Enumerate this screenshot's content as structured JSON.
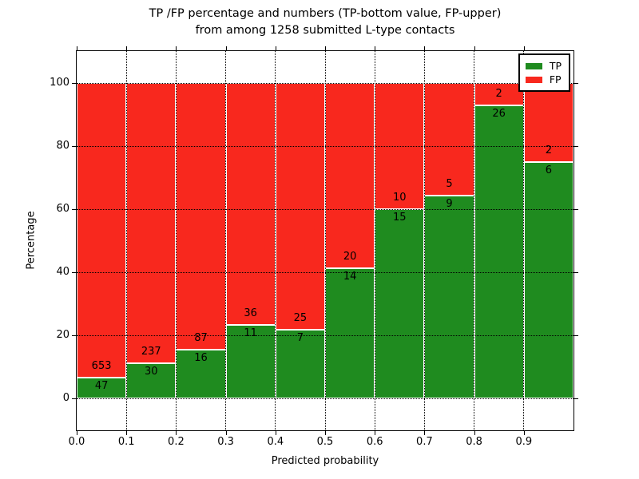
{
  "chart_data": {
    "type": "bar",
    "stacked": true,
    "title_line1": "TP /FP percentage and numbers (TP-bottom value, FP-upper)",
    "title_line2": "from among 1258 submitted L-type contacts",
    "title": "TP /FP percentage and numbers (TP-bottom value, FP-upper)\nfrom among 1258 submitted L-type contacts",
    "xlabel": "Predicted probability",
    "ylabel": "Percentage",
    "total_submitted_contacts": 1258,
    "categories": [
      "0.0-0.1",
      "0.1-0.2",
      "0.2-0.3",
      "0.3-0.4",
      "0.4-0.5",
      "0.5-0.6",
      "0.6-0.7",
      "0.7-0.8",
      "0.8-0.9",
      "0.9-1.0"
    ],
    "x_tick_labels": [
      "0.0",
      "0.1",
      "0.2",
      "0.3",
      "0.4",
      "0.5",
      "0.6",
      "0.7",
      "0.8",
      "0.9"
    ],
    "y_ticks": [
      0,
      20,
      40,
      60,
      80,
      100
    ],
    "xlim": [
      0,
      1
    ],
    "ylim": [
      -10,
      110
    ],
    "bin_width": 0.1,
    "series": [
      {
        "name": "TP",
        "color": "#1f8b1f",
        "values": [
          47,
          30,
          16,
          11,
          7,
          14,
          15,
          9,
          26,
          6
        ]
      },
      {
        "name": "FP",
        "color": "#f8281e",
        "values": [
          653,
          237,
          87,
          36,
          25,
          20,
          10,
          5,
          2,
          2
        ]
      }
    ],
    "tp_percentages": [
      6.71,
      11.24,
      15.53,
      23.4,
      21.88,
      41.18,
      60.0,
      64.29,
      92.86,
      75.0
    ],
    "grid": {
      "on": true,
      "linestyle": "dotted",
      "color": "#000000"
    },
    "legend": {
      "position": "upper right",
      "entries": [
        "TP",
        "FP"
      ]
    },
    "bar_edge_color": "#ffffff"
  }
}
